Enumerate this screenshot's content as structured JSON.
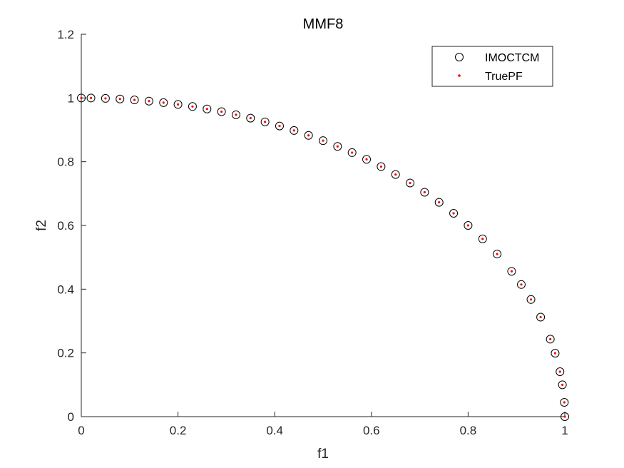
{
  "chart_data": {
    "type": "scatter",
    "title": "MMF8",
    "xlabel": "f1",
    "ylabel": "f2",
    "xlim": [
      0,
      1
    ],
    "ylim": [
      0,
      1.2
    ],
    "xticks": [
      0,
      0.2,
      0.4,
      0.6,
      0.8,
      1
    ],
    "xtick_labels": [
      "0",
      "0.2",
      "0.4",
      "0.6",
      "0.8",
      "1"
    ],
    "yticks": [
      0,
      0.2,
      0.4,
      0.6,
      0.8,
      1,
      1.2
    ],
    "ytick_labels": [
      "0",
      "0.2",
      "0.4",
      "0.6",
      "0.8",
      "1",
      "1.2"
    ],
    "grid": false,
    "legend_position": "top-right",
    "curve": "f1^2 + f2^2 = 1, f1 in [0, 1]",
    "series": [
      {
        "name": "IMOCTCM",
        "marker": "open-circle",
        "color": "#000000",
        "x": [
          0,
          0.02,
          0.05,
          0.08,
          0.11,
          0.14,
          0.17,
          0.2,
          0.23,
          0.26,
          0.29,
          0.32,
          0.35,
          0.38,
          0.41,
          0.44,
          0.47,
          0.5,
          0.53,
          0.56,
          0.59,
          0.62,
          0.65,
          0.68,
          0.71,
          0.74,
          0.77,
          0.8,
          0.83,
          0.86,
          0.89,
          0.91,
          0.93,
          0.95,
          0.97,
          0.98,
          0.99,
          0.995,
          0.999,
          1
        ],
        "y": [
          1,
          0.9998,
          0.9987,
          0.9968,
          0.9939,
          0.9902,
          0.9854,
          0.9798,
          0.9732,
          0.9656,
          0.957,
          0.9474,
          0.9367,
          0.925,
          0.9121,
          0.898,
          0.8827,
          0.866,
          0.848,
          0.8285,
          0.8074,
          0.7846,
          0.7599,
          0.7332,
          0.7042,
          0.6726,
          0.638,
          0.6,
          0.5578,
          0.5103,
          0.456,
          0.4146,
          0.3676,
          0.3122,
          0.2431,
          0.199,
          0.1411,
          0.0999,
          0.0447,
          0
        ]
      },
      {
        "name": "TruePF",
        "marker": "dot",
        "color": "#ff0000",
        "x": [
          0,
          0.02,
          0.05,
          0.08,
          0.11,
          0.14,
          0.17,
          0.2,
          0.23,
          0.26,
          0.29,
          0.32,
          0.35,
          0.38,
          0.41,
          0.44,
          0.47,
          0.5,
          0.53,
          0.56,
          0.59,
          0.62,
          0.65,
          0.68,
          0.71,
          0.74,
          0.77,
          0.8,
          0.83,
          0.86,
          0.89,
          0.91,
          0.93,
          0.95,
          0.97,
          0.98,
          0.99,
          0.995,
          0.999,
          1
        ],
        "y": [
          1,
          0.9998,
          0.9987,
          0.9968,
          0.9939,
          0.9902,
          0.9854,
          0.9798,
          0.9732,
          0.9656,
          0.957,
          0.9474,
          0.9367,
          0.925,
          0.9121,
          0.898,
          0.8827,
          0.866,
          0.848,
          0.8285,
          0.8074,
          0.7846,
          0.7599,
          0.7332,
          0.7042,
          0.6726,
          0.638,
          0.6,
          0.5578,
          0.5103,
          0.456,
          0.4146,
          0.3676,
          0.3122,
          0.2431,
          0.199,
          0.1411,
          0.0999,
          0.0447,
          0
        ]
      }
    ]
  }
}
